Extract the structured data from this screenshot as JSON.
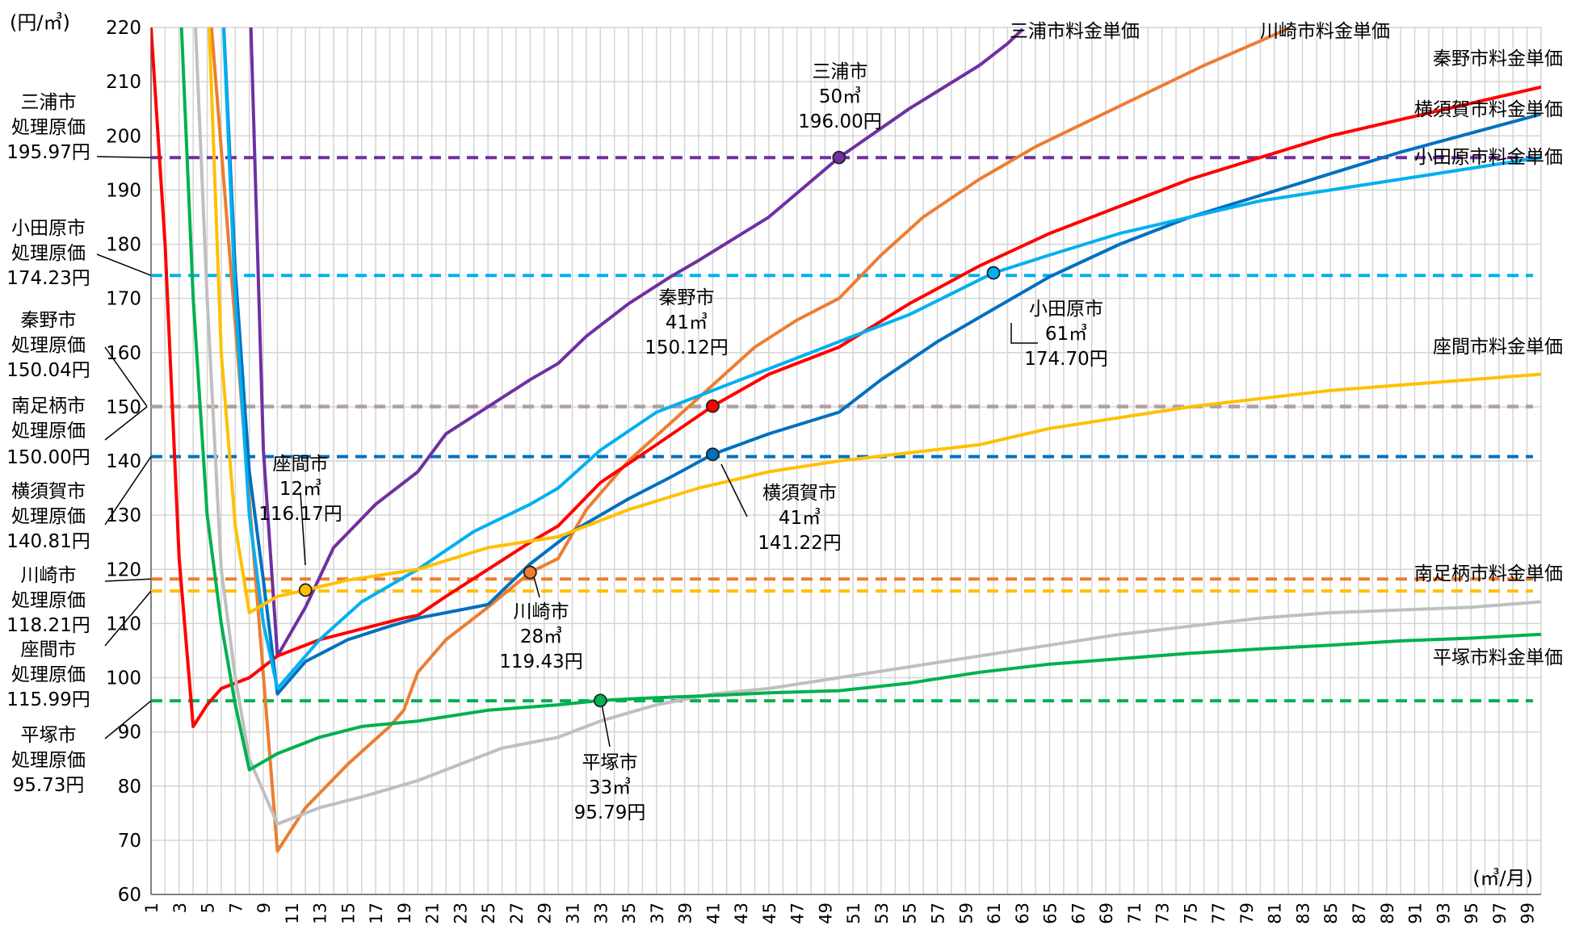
{
  "chart_data": {
    "type": "line",
    "y_unit": "(円/㎥)",
    "x_unit": "(㎥/月)",
    "xlim": [
      1,
      100
    ],
    "ylim": [
      60,
      220
    ],
    "y_ticks": [
      60,
      70,
      80,
      90,
      100,
      110,
      120,
      130,
      140,
      150,
      160,
      170,
      180,
      190,
      200,
      210,
      220
    ],
    "x_ticks": [
      1,
      3,
      5,
      7,
      9,
      11,
      13,
      15,
      17,
      19,
      21,
      23,
      25,
      27,
      29,
      31,
      33,
      35,
      37,
      39,
      41,
      43,
      45,
      47,
      49,
      51,
      53,
      55,
      57,
      59,
      61,
      63,
      65,
      67,
      69,
      71,
      73,
      75,
      77,
      79,
      81,
      83,
      85,
      87,
      89,
      91,
      93,
      95,
      97,
      99
    ],
    "grid": true,
    "series": [
      {
        "name": "三浦市料金単価",
        "color": "#7030a0",
        "points": [
          [
            8,
            230
          ],
          [
            9,
            142
          ],
          [
            10,
            104
          ],
          [
            12,
            113
          ],
          [
            14,
            124
          ],
          [
            17,
            132
          ],
          [
            20,
            138
          ],
          [
            22,
            145
          ],
          [
            25,
            150
          ],
          [
            28,
            155
          ],
          [
            30,
            158
          ],
          [
            32,
            163
          ],
          [
            35,
            169
          ],
          [
            38,
            174
          ],
          [
            40,
            177
          ],
          [
            45,
            185
          ],
          [
            50,
            196
          ],
          [
            55,
            205
          ],
          [
            60,
            213
          ],
          [
            62,
            217
          ],
          [
            63,
            219.5
          ]
        ]
      },
      {
        "name": "川崎市料金単価",
        "color": "#ed7d31",
        "points": [
          [
            5,
            230
          ],
          [
            10,
            68
          ],
          [
            12,
            76
          ],
          [
            15,
            84
          ],
          [
            18,
            91
          ],
          [
            19,
            94
          ],
          [
            20,
            101
          ],
          [
            22,
            107
          ],
          [
            25,
            113
          ],
          [
            28,
            119.43
          ],
          [
            30,
            122
          ],
          [
            32,
            131
          ],
          [
            35,
            140
          ],
          [
            38,
            147
          ],
          [
            41,
            154
          ],
          [
            44,
            161
          ],
          [
            47,
            166
          ],
          [
            50,
            170
          ],
          [
            53,
            178
          ],
          [
            56,
            185
          ],
          [
            60,
            192
          ],
          [
            64,
            198
          ],
          [
            68,
            203
          ],
          [
            72,
            208
          ],
          [
            76,
            213
          ],
          [
            80,
            217.5
          ],
          [
            82,
            219.8
          ]
        ]
      },
      {
        "name": "秦野市料金単価",
        "color": "#ff0000",
        "points": [
          [
            1,
            220
          ],
          [
            2,
            180
          ],
          [
            3,
            122
          ],
          [
            4,
            91
          ],
          [
            5,
            95
          ],
          [
            6,
            98
          ],
          [
            7,
            99
          ],
          [
            8,
            100
          ],
          [
            10,
            104
          ],
          [
            13,
            107
          ],
          [
            16,
            109
          ],
          [
            19,
            111
          ],
          [
            20,
            111.5
          ],
          [
            22,
            115
          ],
          [
            25,
            120
          ],
          [
            28,
            125
          ],
          [
            30,
            128
          ],
          [
            33,
            136
          ],
          [
            37,
            143
          ],
          [
            41,
            150.12
          ],
          [
            45,
            156
          ],
          [
            50,
            161
          ],
          [
            55,
            169
          ],
          [
            60,
            176
          ],
          [
            65,
            182
          ],
          [
            70,
            187
          ],
          [
            75,
            192
          ],
          [
            80,
            196
          ],
          [
            85,
            200
          ],
          [
            90,
            203
          ],
          [
            95,
            206
          ],
          [
            100,
            209
          ]
        ]
      },
      {
        "name": "横須賀市料金単価",
        "color": "#0070c0",
        "points": [
          [
            6,
            230
          ],
          [
            7,
            175
          ],
          [
            8,
            138
          ],
          [
            9,
            118
          ],
          [
            10,
            97
          ],
          [
            12,
            103
          ],
          [
            15,
            107
          ],
          [
            18,
            109.5
          ],
          [
            20,
            111
          ],
          [
            22,
            112
          ],
          [
            25,
            113.5
          ],
          [
            28,
            121
          ],
          [
            31,
            127
          ],
          [
            35,
            133
          ],
          [
            38,
            137
          ],
          [
            41,
            141.22
          ],
          [
            45,
            145
          ],
          [
            50,
            149
          ],
          [
            53,
            155
          ],
          [
            57,
            162
          ],
          [
            61,
            168
          ],
          [
            65,
            174
          ],
          [
            70,
            180
          ],
          [
            75,
            185
          ],
          [
            80,
            189
          ],
          [
            85,
            193
          ],
          [
            90,
            197
          ],
          [
            95,
            200.5
          ],
          [
            100,
            204
          ]
        ]
      },
      {
        "name": "小田原市料金単価",
        "color": "#00b0f0",
        "points": [
          [
            6,
            230
          ],
          [
            7,
            170
          ],
          [
            8,
            130
          ],
          [
            9,
            110
          ],
          [
            10,
            98
          ],
          [
            13,
            107
          ],
          [
            16,
            114
          ],
          [
            20,
            120
          ],
          [
            24,
            127
          ],
          [
            28,
            132
          ],
          [
            30,
            135
          ],
          [
            33,
            142
          ],
          [
            37,
            149
          ],
          [
            41,
            153
          ],
          [
            45,
            157
          ],
          [
            50,
            162
          ],
          [
            55,
            167
          ],
          [
            61,
            174.7
          ],
          [
            65,
            178
          ],
          [
            70,
            182
          ],
          [
            75,
            185
          ],
          [
            80,
            188
          ],
          [
            85,
            190
          ],
          [
            90,
            192
          ],
          [
            95,
            194
          ],
          [
            100,
            196
          ]
        ]
      },
      {
        "name": "座間市料金単価",
        "color": "#ffc000",
        "points": [
          [
            5,
            230
          ],
          [
            6,
            160
          ],
          [
            7,
            128
          ],
          [
            8,
            112
          ],
          [
            10,
            115
          ],
          [
            12,
            116.17
          ],
          [
            15,
            118
          ],
          [
            20,
            120
          ],
          [
            25,
            124
          ],
          [
            30,
            126
          ],
          [
            35,
            131
          ],
          [
            40,
            135
          ],
          [
            45,
            138
          ],
          [
            50,
            140
          ],
          [
            55,
            141.5
          ],
          [
            60,
            143
          ],
          [
            65,
            146
          ],
          [
            70,
            148
          ],
          [
            75,
            150
          ],
          [
            80,
            151.5
          ],
          [
            85,
            153
          ],
          [
            90,
            154
          ],
          [
            95,
            155
          ],
          [
            100,
            156
          ]
        ]
      },
      {
        "name": "南足柄市料金単価",
        "color": "#bfbfbf",
        "points": [
          [
            4,
            230
          ],
          [
            5,
            170
          ],
          [
            6,
            120
          ],
          [
            7,
            100
          ],
          [
            8,
            85
          ],
          [
            10,
            73
          ],
          [
            13,
            76
          ],
          [
            16,
            78
          ],
          [
            20,
            81
          ],
          [
            23,
            84
          ],
          [
            26,
            87
          ],
          [
            30,
            89
          ],
          [
            33,
            92
          ],
          [
            37,
            95
          ],
          [
            41,
            97
          ],
          [
            45,
            98
          ],
          [
            50,
            100
          ],
          [
            55,
            102
          ],
          [
            60,
            104
          ],
          [
            65,
            106
          ],
          [
            70,
            108
          ],
          [
            75,
            109.5
          ],
          [
            80,
            111
          ],
          [
            85,
            112
          ],
          [
            90,
            112.5
          ],
          [
            95,
            113
          ],
          [
            100,
            114
          ]
        ]
      },
      {
        "name": "平塚市料金単価",
        "color": "#00b050",
        "points": [
          [
            3,
            230
          ],
          [
            4,
            170
          ],
          [
            5,
            130
          ],
          [
            6,
            110
          ],
          [
            7,
            95
          ],
          [
            8,
            83
          ],
          [
            10,
            86
          ],
          [
            13,
            89
          ],
          [
            16,
            91
          ],
          [
            20,
            92
          ],
          [
            25,
            94
          ],
          [
            30,
            95
          ],
          [
            33,
            95.79
          ],
          [
            36,
            96.2
          ],
          [
            40,
            96.6
          ],
          [
            45,
            97.2
          ],
          [
            50,
            97.6
          ],
          [
            55,
            99
          ],
          [
            60,
            101
          ],
          [
            65,
            102.5
          ],
          [
            70,
            103.5
          ],
          [
            75,
            104.5
          ],
          [
            80,
            105.3
          ],
          [
            85,
            106
          ],
          [
            90,
            106.8
          ],
          [
            95,
            107.3
          ],
          [
            100,
            108
          ]
        ]
      }
    ],
    "cost_lines": [
      {
        "city": "三浦市",
        "value": 195.97,
        "color": "#7030a0"
      },
      {
        "city": "小田原市",
        "value": 174.23,
        "color": "#00b0f0"
      },
      {
        "city": "秦野市",
        "value": 150.04,
        "color": "#ff0000"
      },
      {
        "city": "南足柄市",
        "value": 150.0,
        "color": "#a6a6a6"
      },
      {
        "city": "横須賀市",
        "value": 140.81,
        "color": "#0070c0"
      },
      {
        "city": "川崎市",
        "value": 118.21,
        "color": "#ed7d31"
      },
      {
        "city": "座間市",
        "value": 115.99,
        "color": "#ffc000"
      },
      {
        "city": "平塚市",
        "value": 95.73,
        "color": "#00b050"
      }
    ],
    "cost_labels": [
      {
        "lines": [
          "三浦市",
          "処理原価",
          "195.97円"
        ]
      },
      {
        "lines": [
          "小田原市",
          "処理原価",
          "174.23円"
        ]
      },
      {
        "lines": [
          "秦野市",
          "処理原価",
          "150.04円"
        ]
      },
      {
        "lines": [
          "南足柄市",
          "処理原価"
        ]
      },
      {
        "lines": [
          "150.00円"
        ]
      },
      {
        "lines": [
          "横須賀市",
          "処理原価",
          "140.81円"
        ]
      },
      {
        "lines": [
          "川崎市",
          "処理原価",
          "118.21円"
        ]
      },
      {
        "lines": [
          "座間市",
          "処理原価",
          "115.99円"
        ]
      },
      {
        "lines": [
          "平塚市",
          "処理原価",
          "95.73円"
        ]
      }
    ],
    "crossings": [
      {
        "x": 50,
        "y": 196.0,
        "color": "#7030a0",
        "label": [
          "三浦市",
          "50㎥",
          "196.00円"
        ]
      },
      {
        "x": 41,
        "y": 150.12,
        "color": "#ff0000",
        "label": [
          "秦野市",
          "41㎥",
          "150.12円"
        ]
      },
      {
        "x": 61,
        "y": 174.7,
        "color": "#00b0f0",
        "label": [
          "小田原市",
          "61㎥",
          "174.70円"
        ]
      },
      {
        "x": 41,
        "y": 141.22,
        "color": "#0070c0",
        "label": [
          "横須賀市",
          "41㎥",
          "141.22円"
        ]
      },
      {
        "x": 12,
        "y": 116.17,
        "color": "#ffc000",
        "label": [
          "座間市",
          "12㎥",
          "116.17円"
        ]
      },
      {
        "x": 28,
        "y": 119.43,
        "color": "#ed7d31",
        "label": [
          "川崎市",
          "28㎥",
          "119.43円"
        ]
      },
      {
        "x": 33,
        "y": 95.79,
        "color": "#00b050",
        "label": [
          "平塚市",
          "33㎥",
          "95.79円"
        ]
      }
    ],
    "series_labels": [
      "三浦市料金単価",
      "川崎市料金単価",
      "秦野市料金単価",
      "横須賀市料金単価",
      "小田原市料金単価",
      "座間市料金単価",
      "南足柄市料金単価",
      "平塚市料金単価"
    ]
  }
}
